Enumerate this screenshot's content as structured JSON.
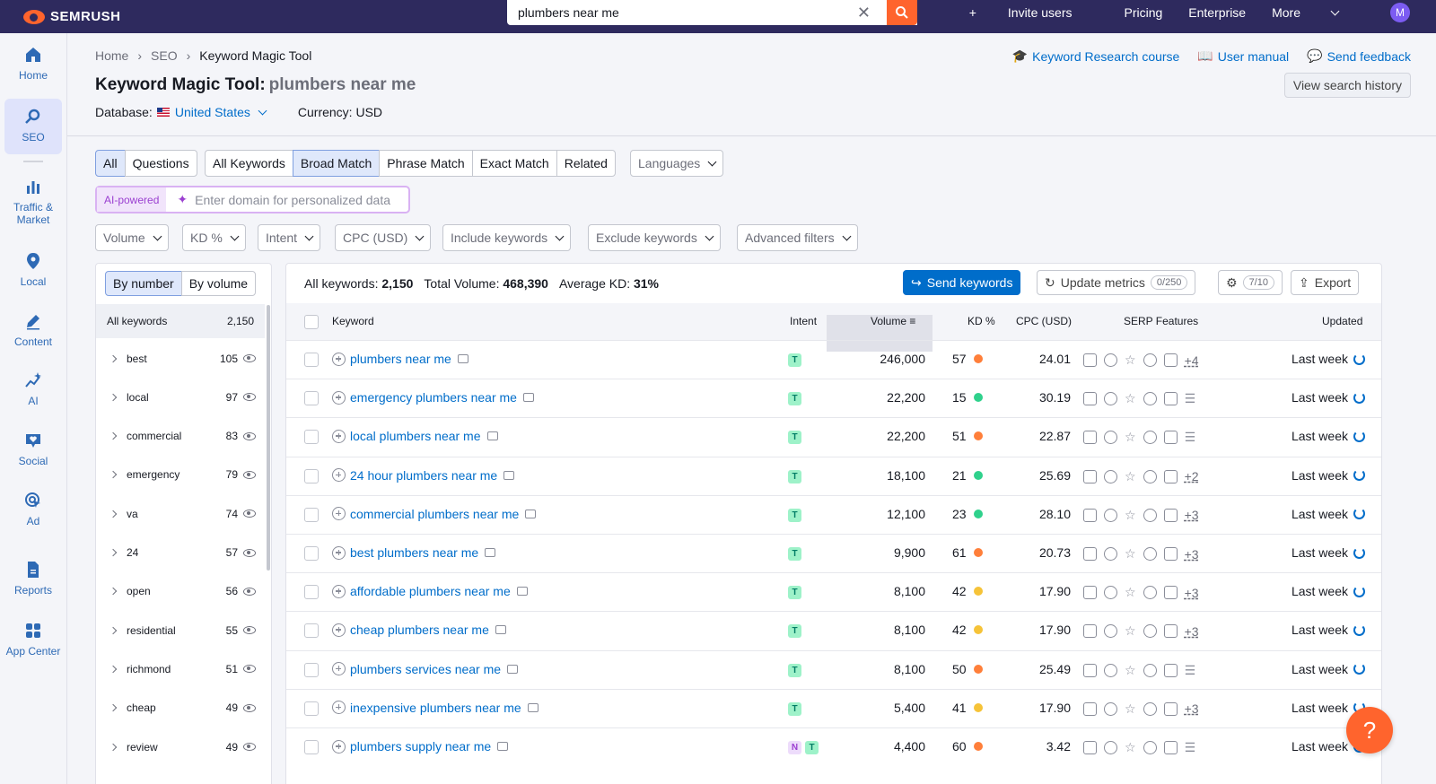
{
  "brand": "SEMRUSH",
  "search": {
    "value": "plumbers near me"
  },
  "topnav": {
    "invite": "Invite users",
    "pricing": "Pricing",
    "enterprise": "Enterprise",
    "more": "More",
    "avatar": "M"
  },
  "leftnav": [
    {
      "label": "Home"
    },
    {
      "label": "SEO"
    },
    {
      "label": "Traffic & Market"
    },
    {
      "label": "Local"
    },
    {
      "label": "Content"
    },
    {
      "label": "AI"
    },
    {
      "label": "Social"
    },
    {
      "label": "Ad"
    },
    {
      "label": "Reports"
    },
    {
      "label": "App Center"
    }
  ],
  "breadcrumb": [
    "Home",
    "SEO",
    "Keyword Magic Tool"
  ],
  "title": "Keyword Magic Tool:",
  "query": "plumbers near me",
  "database_label": "Database:",
  "database_value": "United States",
  "currency": "Currency: USD",
  "header_links": {
    "course": "Keyword Research course",
    "manual": "User manual",
    "feedback": "Send feedback"
  },
  "view_history": "View search history",
  "tabs1": [
    "All",
    "Questions"
  ],
  "tabs2": [
    "All Keywords",
    "Broad Match",
    "Phrase Match",
    "Exact Match",
    "Related"
  ],
  "languages": "Languages",
  "ai": {
    "tag": "AI-powered",
    "placeholder": "Enter domain for personalized data"
  },
  "filters": [
    "Volume",
    "KD %",
    "Intent",
    "CPC (USD)",
    "Include keywords",
    "Exclude keywords",
    "Advanced filters"
  ],
  "side": {
    "tab_number": "By number",
    "tab_volume": "By volume",
    "head_label": "All keywords",
    "head_count": "2,150",
    "groups": [
      {
        "kw": "best",
        "count": "105"
      },
      {
        "kw": "local",
        "count": "97"
      },
      {
        "kw": "commercial",
        "count": "83"
      },
      {
        "kw": "emergency",
        "count": "79"
      },
      {
        "kw": "va",
        "count": "74"
      },
      {
        "kw": "24",
        "count": "57"
      },
      {
        "kw": "open",
        "count": "56"
      },
      {
        "kw": "residential",
        "count": "55"
      },
      {
        "kw": "richmond",
        "count": "51"
      },
      {
        "kw": "cheap",
        "count": "49"
      },
      {
        "kw": "review",
        "count": "49"
      }
    ]
  },
  "summary": {
    "all_label": "All keywords:",
    "all": "2,150",
    "vol_label": "Total Volume:",
    "vol": "468,390",
    "kd_label": "Average KD:",
    "kd": "31%"
  },
  "actions": {
    "send": "Send keywords",
    "update": "Update metrics",
    "update_count": "0/250",
    "settings_count": "7/10",
    "export": "Export"
  },
  "columns": {
    "keyword": "Keyword",
    "intent": "Intent",
    "volume": "Volume",
    "kd": "KD %",
    "cpc": "CPC (USD)",
    "serp": "SERP Features",
    "updated": "Updated"
  },
  "colors": {
    "orange": "#ff7f3a",
    "green": "#2fd18c",
    "yellow": "#f6c338"
  },
  "rows": [
    {
      "kw": "plumbers near me",
      "intent": [
        "T"
      ],
      "volume": "246,000",
      "kd": "57",
      "kdColor": "#ff7f3a",
      "cpc": "24.01",
      "more": "+4",
      "updated": "Last week"
    },
    {
      "kw": "emergency plumbers near me",
      "intent": [
        "T"
      ],
      "volume": "22,200",
      "kd": "15",
      "kdColor": "#2fd18c",
      "cpc": "30.19",
      "more": "",
      "updated": "Last week"
    },
    {
      "kw": "local plumbers near me",
      "intent": [
        "T"
      ],
      "volume": "22,200",
      "kd": "51",
      "kdColor": "#ff7f3a",
      "cpc": "22.87",
      "more": "",
      "updated": "Last week"
    },
    {
      "kw": "24 hour plumbers near me",
      "intent": [
        "T"
      ],
      "volume": "18,100",
      "kd": "21",
      "kdColor": "#2fd18c",
      "cpc": "25.69",
      "more": "+2",
      "updated": "Last week"
    },
    {
      "kw": "commercial plumbers near me",
      "intent": [
        "T"
      ],
      "volume": "12,100",
      "kd": "23",
      "kdColor": "#2fd18c",
      "cpc": "28.10",
      "more": "+3",
      "updated": "Last week"
    },
    {
      "kw": "best plumbers near me",
      "intent": [
        "T"
      ],
      "volume": "9,900",
      "kd": "61",
      "kdColor": "#ff7f3a",
      "cpc": "20.73",
      "more": "+3",
      "updated": "Last week"
    },
    {
      "kw": "affordable plumbers near me",
      "intent": [
        "T"
      ],
      "volume": "8,100",
      "kd": "42",
      "kdColor": "#f6c338",
      "cpc": "17.90",
      "more": "+3",
      "updated": "Last week"
    },
    {
      "kw": "cheap plumbers near me",
      "intent": [
        "T"
      ],
      "volume": "8,100",
      "kd": "42",
      "kdColor": "#f6c338",
      "cpc": "17.90",
      "more": "+3",
      "updated": "Last week"
    },
    {
      "kw": "plumbers services near me",
      "intent": [
        "T"
      ],
      "volume": "8,100",
      "kd": "50",
      "kdColor": "#ff7f3a",
      "cpc": "25.49",
      "more": "",
      "updated": "Last week"
    },
    {
      "kw": "inexpensive plumbers near me",
      "intent": [
        "T"
      ],
      "volume": "5,400",
      "kd": "41",
      "kdColor": "#f6c338",
      "cpc": "17.90",
      "more": "+3",
      "updated": "Last week"
    },
    {
      "kw": "plumbers supply near me",
      "intent": [
        "N",
        "T"
      ],
      "volume": "4,400",
      "kd": "60",
      "kdColor": "#ff7f3a",
      "cpc": "3.42",
      "more": "",
      "updated": "Last week"
    }
  ],
  "help": "?"
}
